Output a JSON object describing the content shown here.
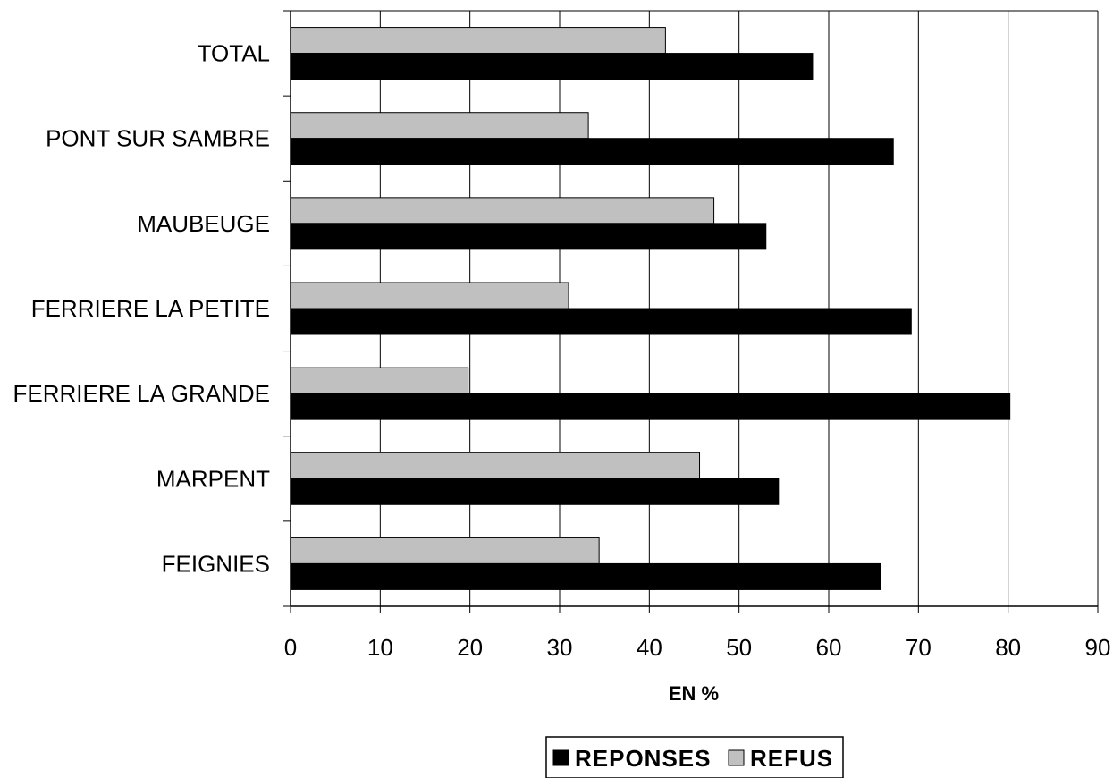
{
  "chart_data": {
    "type": "bar",
    "orientation": "horizontal",
    "categories": [
      "TOTAL",
      "PONT SUR SAMBRE",
      "MAUBEUGE",
      "FERRIERE LA PETITE",
      "FERRIERE LA GRANDE",
      "MARPENT",
      "FEIGNIES"
    ],
    "series": [
      {
        "name": "REPONSES",
        "color": "#000000",
        "values": [
          58.2,
          67.2,
          53.0,
          69.2,
          80.2,
          54.4,
          65.8
        ]
      },
      {
        "name": "REFUS",
        "color": "#c0c0c0",
        "values": [
          41.8,
          33.2,
          47.2,
          31.0,
          19.8,
          45.6,
          34.4
        ]
      }
    ],
    "xlabel": "EN %",
    "ylabel": "",
    "xlim": [
      0,
      90
    ],
    "xticks": [
      "0",
      "10",
      "20",
      "30",
      "40",
      "50",
      "60",
      "70",
      "80",
      "90"
    ],
    "grid": "vertical",
    "legend_position": "bottom"
  }
}
